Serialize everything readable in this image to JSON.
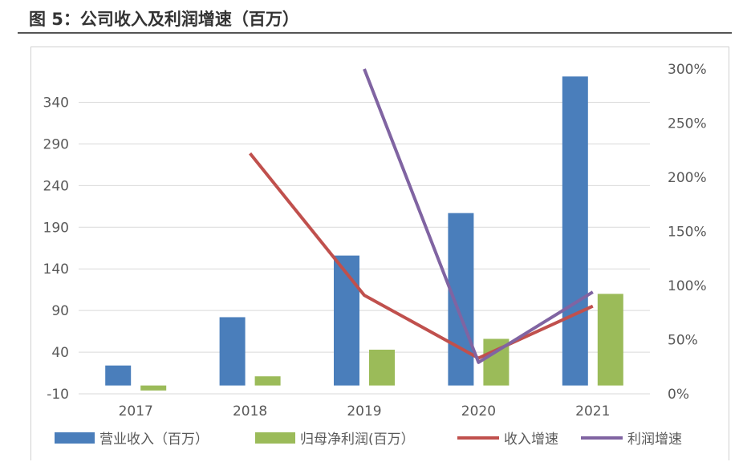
{
  "figure_title": "图 5：公司收入及利润增速（百万）",
  "colors": {
    "revenue": "#4a7ebb",
    "profit": "#9bbb59",
    "revenue_growth": "#c0504d",
    "profit_growth": "#8064a2"
  },
  "chart_data": {
    "type": "bar",
    "categories": [
      "2017",
      "2018",
      "2019",
      "2020",
      "2021"
    ],
    "y_left": {
      "ticks": [
        -10,
        40,
        90,
        140,
        190,
        240,
        290,
        340
      ],
      "range": [
        -10,
        380
      ]
    },
    "y_right": {
      "ticks": [
        "0%",
        "50%",
        "100%",
        "150%",
        "200%",
        "250%",
        "300%"
      ],
      "range": [
        0,
        3.0
      ]
    },
    "bar_series": [
      {
        "name": "营业收入（百万）",
        "values": [
          24,
          82,
          156,
          207,
          371
        ]
      },
      {
        "name": "归母净利润(百万）",
        "values": [
          -6,
          11,
          43,
          56,
          110
        ]
      }
    ],
    "line_series": [
      {
        "name": "收入增速",
        "values": [
          null,
          2.22,
          0.91,
          0.33,
          0.81
        ]
      },
      {
        "name": "利润增速",
        "values": [
          null,
          null,
          3.0,
          0.29,
          0.94
        ]
      }
    ]
  }
}
